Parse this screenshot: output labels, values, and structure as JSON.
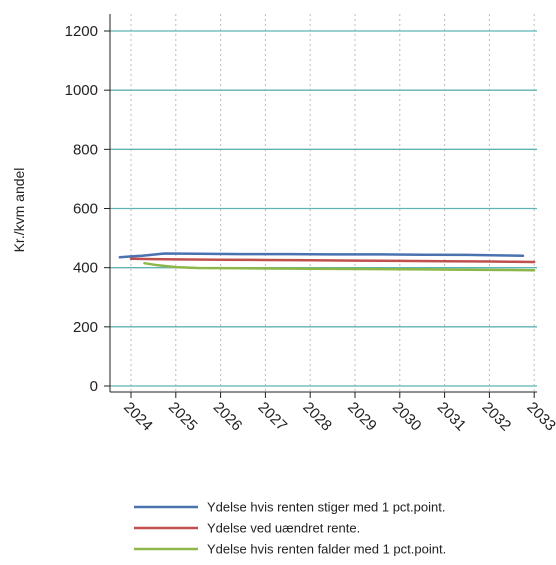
{
  "chart_data": {
    "type": "line",
    "title": "",
    "xlabel": "",
    "ylabel": "Kr./kvm andel",
    "ylim": [
      0,
      1200
    ],
    "xlim": [
      2023.7,
      2033.1
    ],
    "y_ticks": [
      0,
      200,
      400,
      600,
      800,
      1000,
      1200
    ],
    "x_ticks": [
      2024,
      2025,
      2026,
      2027,
      2028,
      2029,
      2030,
      2031,
      2032,
      2033
    ],
    "grid": {
      "horizontal": true,
      "vertical": true,
      "vertical_style": "dotted"
    },
    "legend_position": "bottom",
    "series": [
      {
        "name": "Ydelse hvis renten stiger med 1 pct.point.",
        "color": "#4a72b0",
        "x": [
          2023.75,
          2024.0,
          2024.25,
          2024.75,
          2025.5,
          2026.5,
          2027.5,
          2028.5,
          2029.5,
          2030.5,
          2031.5,
          2032.4,
          2032.75
        ],
        "y": [
          435,
          438,
          440,
          448,
          447,
          446,
          446,
          445,
          445,
          444,
          443,
          441,
          440
        ]
      },
      {
        "name": "Ydelse ved uændret rente.",
        "color": "#c0504d",
        "x": [
          2024.0,
          2024.5,
          2025.0,
          2026.0,
          2027.0,
          2028.0,
          2029.0,
          2030.0,
          2031.0,
          2032.0,
          2032.5,
          2033.0
        ],
        "y": [
          430,
          429,
          428,
          427,
          426,
          425,
          424,
          423,
          422,
          421,
          420,
          419
        ]
      },
      {
        "name": "Ydelse hvis renten falder med 1 pct.point.",
        "color": "#8db748",
        "x": [
          2024.3,
          2024.6,
          2025.0,
          2025.5,
          2026.5,
          2027.5,
          2028.5,
          2029.5,
          2030.5,
          2031.5,
          2032.5,
          2033.0
        ],
        "y": [
          415,
          408,
          402,
          399,
          398,
          397,
          396,
          395,
          394,
          393,
          392,
          391
        ]
      }
    ]
  },
  "colors": {
    "gridline_horizontal": "#5fb3b3",
    "gridline_vertical": "#bbbbbb",
    "axis": "#222222"
  }
}
